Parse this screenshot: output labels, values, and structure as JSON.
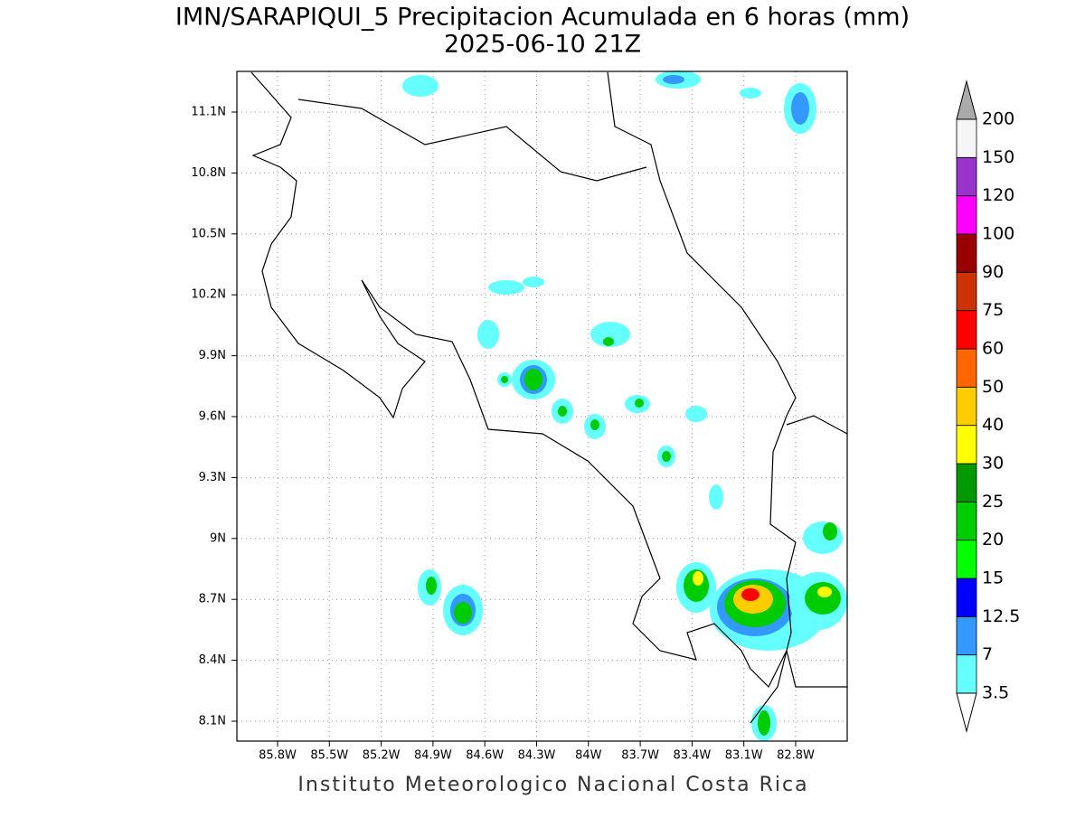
{
  "header": {
    "title": "IMN/SARAPIQUI_5 Precipitacion Acumulada en 6 horas (mm)",
    "subtitle": "2025-06-10 21Z"
  },
  "map": {
    "lon_labels": [
      "85.8W",
      "85.5W",
      "85.2W",
      "84.9W",
      "84.6W",
      "84.3W",
      "84W",
      "83.7W",
      "83.4W",
      "83.1W",
      "82.8W"
    ],
    "lat_labels": [
      "11.1N",
      "10.8N",
      "10.5N",
      "10.2N",
      "9.9N",
      "9.6N",
      "9.3N",
      "9N",
      "8.7N",
      "8.4N",
      "8.1N"
    ]
  },
  "colorbar": {
    "levels": [
      3.5,
      7,
      12.5,
      15,
      20,
      25,
      30,
      40,
      50,
      60,
      75,
      90,
      100,
      120,
      150,
      200
    ],
    "colors": [
      "#66ffff",
      "#3399ff",
      "#0000ff",
      "#00ff00",
      "#00cc00",
      "#009900",
      "#ffff00",
      "#ffcc00",
      "#ff6600",
      "#ff0000",
      "#cc3300",
      "#990000",
      "#ff00ff",
      "#9933cc",
      "#f5f5f5"
    ]
  },
  "footer": {
    "credit": "Instituto Meteorologico Nacional Costa Rica"
  }
}
